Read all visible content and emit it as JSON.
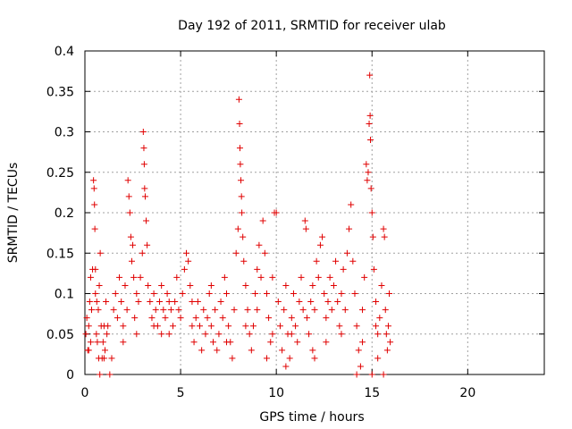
{
  "chart_data": {
    "type": "scatter",
    "title": "Day 192 of 2011, SRMTID for receiver ulab",
    "xlabel": "GPS time / hours",
    "ylabel": "SRMTID / TECUs",
    "xlim": [
      0,
      24
    ],
    "ylim": [
      0,
      0.4
    ],
    "x_ticks": [
      0,
      5,
      10,
      15,
      20
    ],
    "x_tick_labels": [
      "0",
      "5",
      "10",
      "15",
      "20"
    ],
    "y_ticks": [
      0,
      0.05,
      0.1,
      0.15,
      0.2,
      0.25,
      0.3,
      0.35,
      0.4
    ],
    "y_tick_labels": [
      "0",
      "0.05",
      "0.1",
      "0.15",
      "0.2",
      "0.25",
      "0.3",
      "0.35",
      "0.4"
    ],
    "grid": true,
    "marker": "plus",
    "marker_color": "#e00000",
    "series": [
      {
        "name": "SRMTID",
        "points": [
          [
            0.05,
            0.05
          ],
          [
            0.1,
            0.07
          ],
          [
            0.15,
            0.03
          ],
          [
            0.2,
            0.06
          ],
          [
            0.25,
            0.09
          ],
          [
            0.3,
            0.12
          ],
          [
            0.35,
            0.08
          ],
          [
            0.4,
            0.13
          ],
          [
            0.45,
            0.24
          ],
          [
            0.48,
            0.23
          ],
          [
            0.5,
            0.21
          ],
          [
            0.52,
            0.18
          ],
          [
            0.55,
            0.1
          ],
          [
            0.6,
            0.05
          ],
          [
            0.65,
            0.04
          ],
          [
            0.7,
            0.08
          ],
          [
            0.75,
            0.11
          ],
          [
            0.8,
            0.15
          ],
          [
            0.85,
            0.06
          ],
          [
            0.9,
            0.02
          ],
          [
            0.95,
            0.04
          ],
          [
            1.0,
            0.06
          ],
          [
            1.05,
            0.03
          ],
          [
            1.1,
            0.09
          ],
          [
            1.15,
            0.05
          ],
          [
            0.3,
            0.04
          ],
          [
            0.55,
            0.13
          ],
          [
            0.62,
            0.09
          ],
          [
            0.72,
            0.02
          ],
          [
            0.78,
            0.0
          ],
          [
            1.3,
            0.0
          ],
          [
            1.4,
            0.02
          ],
          [
            1.5,
            0.08
          ],
          [
            1.6,
            0.1
          ],
          [
            1.7,
            0.07
          ],
          [
            1.8,
            0.12
          ],
          [
            1.9,
            0.09
          ],
          [
            2.0,
            0.06
          ],
          [
            2.1,
            0.11
          ],
          [
            2.2,
            0.08
          ],
          [
            2.25,
            0.24
          ],
          [
            2.3,
            0.22
          ],
          [
            2.35,
            0.2
          ],
          [
            2.4,
            0.17
          ],
          [
            2.45,
            0.14
          ],
          [
            2.5,
            0.16
          ],
          [
            2.55,
            0.12
          ],
          [
            2.6,
            0.07
          ],
          [
            2.7,
            0.05
          ],
          [
            2.8,
            0.09
          ],
          [
            2.9,
            0.12
          ],
          [
            3.0,
            0.15
          ],
          [
            3.05,
            0.3
          ],
          [
            3.08,
            0.28
          ],
          [
            3.1,
            0.26
          ],
          [
            3.12,
            0.23
          ],
          [
            3.15,
            0.22
          ],
          [
            3.2,
            0.19
          ],
          [
            3.25,
            0.16
          ],
          [
            3.3,
            0.11
          ],
          [
            3.4,
            0.09
          ],
          [
            3.5,
            0.07
          ],
          [
            3.6,
            0.1
          ],
          [
            3.7,
            0.08
          ],
          [
            3.8,
            0.06
          ],
          [
            3.9,
            0.09
          ],
          [
            4.0,
            0.11
          ],
          [
            4.1,
            0.08
          ],
          [
            4.2,
            0.07
          ],
          [
            4.3,
            0.1
          ],
          [
            4.4,
            0.05
          ],
          [
            4.5,
            0.08
          ],
          [
            4.6,
            0.06
          ],
          [
            4.7,
            0.09
          ],
          [
            4.8,
            0.12
          ],
          [
            4.9,
            0.08
          ],
          [
            5.0,
            0.07
          ],
          [
            5.1,
            0.1
          ],
          [
            5.2,
            0.13
          ],
          [
            5.3,
            0.15
          ],
          [
            5.4,
            0.14
          ],
          [
            5.5,
            0.11
          ],
          [
            5.6,
            0.06
          ],
          [
            5.7,
            0.04
          ],
          [
            5.8,
            0.07
          ],
          [
            5.9,
            0.09
          ],
          [
            6.0,
            0.06
          ],
          [
            6.1,
            0.03
          ],
          [
            6.2,
            0.08
          ],
          [
            6.3,
            0.05
          ],
          [
            6.4,
            0.07
          ],
          [
            6.5,
            0.1
          ],
          [
            6.6,
            0.06
          ],
          [
            6.7,
            0.04
          ],
          [
            6.8,
            0.08
          ],
          [
            6.9,
            0.03
          ],
          [
            7.0,
            0.05
          ],
          [
            7.1,
            0.09
          ],
          [
            7.2,
            0.07
          ],
          [
            7.3,
            0.12
          ],
          [
            7.4,
            0.1
          ],
          [
            7.5,
            0.06
          ],
          [
            7.6,
            0.04
          ],
          [
            7.7,
            0.02
          ],
          [
            7.8,
            0.08
          ],
          [
            7.9,
            0.15
          ],
          [
            8.0,
            0.18
          ],
          [
            8.05,
            0.34
          ],
          [
            8.08,
            0.31
          ],
          [
            8.1,
            0.28
          ],
          [
            8.12,
            0.26
          ],
          [
            8.15,
            0.24
          ],
          [
            8.18,
            0.22
          ],
          [
            8.2,
            0.2
          ],
          [
            8.25,
            0.17
          ],
          [
            8.3,
            0.14
          ],
          [
            8.4,
            0.11
          ],
          [
            8.5,
            0.08
          ],
          [
            8.6,
            0.05
          ],
          [
            8.7,
            0.03
          ],
          [
            8.8,
            0.06
          ],
          [
            8.9,
            0.1
          ],
          [
            9.0,
            0.13
          ],
          [
            9.1,
            0.16
          ],
          [
            9.2,
            0.12
          ],
          [
            9.3,
            0.19
          ],
          [
            9.4,
            0.15
          ],
          [
            9.5,
            0.1
          ],
          [
            9.6,
            0.07
          ],
          [
            9.7,
            0.04
          ],
          [
            9.8,
            0.12
          ],
          [
            9.9,
            0.2
          ],
          [
            10.0,
            0.2
          ],
          [
            10.1,
            0.09
          ],
          [
            10.2,
            0.06
          ],
          [
            10.3,
            0.03
          ],
          [
            10.4,
            0.08
          ],
          [
            10.5,
            0.11
          ],
          [
            10.6,
            0.05
          ],
          [
            10.7,
            0.02
          ],
          [
            10.8,
            0.07
          ],
          [
            10.9,
            0.1
          ],
          [
            11.0,
            0.06
          ],
          [
            11.1,
            0.04
          ],
          [
            11.2,
            0.09
          ],
          [
            11.3,
            0.12
          ],
          [
            11.4,
            0.08
          ],
          [
            11.5,
            0.19
          ],
          [
            11.55,
            0.18
          ],
          [
            11.6,
            0.07
          ],
          [
            11.7,
            0.05
          ],
          [
            11.8,
            0.09
          ],
          [
            11.9,
            0.11
          ],
          [
            12.0,
            0.08
          ],
          [
            12.1,
            0.14
          ],
          [
            12.2,
            0.12
          ],
          [
            12.3,
            0.16
          ],
          [
            12.4,
            0.17
          ],
          [
            12.5,
            0.1
          ],
          [
            12.6,
            0.07
          ],
          [
            12.7,
            0.09
          ],
          [
            12.8,
            0.12
          ],
          [
            12.9,
            0.08
          ],
          [
            13.0,
            0.11
          ],
          [
            13.1,
            0.14
          ],
          [
            13.2,
            0.09
          ],
          [
            13.3,
            0.06
          ],
          [
            13.4,
            0.1
          ],
          [
            13.5,
            0.13
          ],
          [
            13.6,
            0.08
          ],
          [
            13.7,
            0.15
          ],
          [
            13.8,
            0.18
          ],
          [
            13.9,
            0.21
          ],
          [
            14.0,
            0.14
          ],
          [
            14.1,
            0.1
          ],
          [
            14.2,
            0.06
          ],
          [
            14.3,
            0.03
          ],
          [
            14.4,
            0.01
          ],
          [
            14.5,
            0.08
          ],
          [
            14.6,
            0.12
          ],
          [
            14.7,
            0.26
          ],
          [
            14.75,
            0.24
          ],
          [
            14.8,
            0.25
          ],
          [
            14.85,
            0.31
          ],
          [
            14.88,
            0.37
          ],
          [
            14.9,
            0.32
          ],
          [
            14.92,
            0.29
          ],
          [
            14.95,
            0.23
          ],
          [
            15.0,
            0.2
          ],
          [
            15.05,
            0.17
          ],
          [
            15.1,
            0.13
          ],
          [
            15.2,
            0.09
          ],
          [
            15.3,
            0.05
          ],
          [
            15.4,
            0.07
          ],
          [
            15.5,
            0.11
          ],
          [
            15.6,
            0.18
          ],
          [
            15.65,
            0.17
          ],
          [
            15.7,
            0.08
          ],
          [
            15.75,
            0.05
          ],
          [
            15.8,
            0.03
          ],
          [
            15.85,
            0.06
          ],
          [
            15.9,
            0.1
          ],
          [
            15.95,
            0.04
          ],
          [
            15.0,
            0.0
          ],
          [
            15.3,
            0.02
          ],
          [
            15.6,
            0.0
          ],
          [
            14.2,
            0.0
          ],
          [
            12.0,
            0.02
          ],
          [
            10.5,
            0.01
          ],
          [
            9.5,
            0.02
          ],
          [
            1.0,
            0.02
          ],
          [
            1.2,
            0.06
          ],
          [
            2.0,
            0.04
          ],
          [
            2.7,
            0.1
          ],
          [
            3.6,
            0.06
          ],
          [
            4.4,
            0.09
          ],
          [
            5.6,
            0.09
          ],
          [
            6.6,
            0.11
          ],
          [
            7.4,
            0.04
          ],
          [
            8.4,
            0.06
          ],
          [
            9.0,
            0.08
          ],
          [
            9.8,
            0.05
          ],
          [
            10.8,
            0.05
          ],
          [
            11.9,
            0.03
          ],
          [
            12.6,
            0.04
          ],
          [
            13.4,
            0.05
          ],
          [
            14.5,
            0.04
          ],
          [
            15.2,
            0.06
          ],
          [
            0.2,
            0.03
          ],
          [
            4.0,
            0.05
          ]
        ]
      }
    ]
  }
}
